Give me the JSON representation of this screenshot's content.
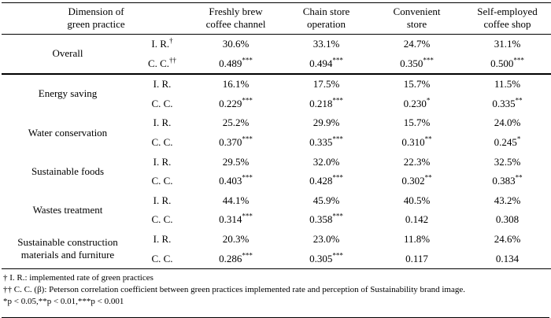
{
  "table": {
    "header": {
      "dimension": "Dimension of\ngreen practice",
      "columns": [
        "Freshly brew\ncoffee channel",
        "Chain store\noperation",
        "Convenient\nstore",
        "Self-employed\ncoffee shop"
      ]
    },
    "row_labels": {
      "ir": "I. R.",
      "cc": "C. C."
    },
    "groups": [
      {
        "dimension": "Overall",
        "ir_sup": "†",
        "cc_sup": "††",
        "ir": [
          {
            "v": "30.6%",
            "s": ""
          },
          {
            "v": "33.1%",
            "s": ""
          },
          {
            "v": "24.7%",
            "s": ""
          },
          {
            "v": "31.1%",
            "s": ""
          }
        ],
        "cc": [
          {
            "v": "0.489",
            "s": "***"
          },
          {
            "v": "0.494",
            "s": "***"
          },
          {
            "v": "0.350",
            "s": "***"
          },
          {
            "v": "0.500",
            "s": "***"
          }
        ]
      },
      {
        "dimension": "Energy saving",
        "ir_sup": "",
        "cc_sup": "",
        "ir": [
          {
            "v": "16.1%",
            "s": ""
          },
          {
            "v": "17.5%",
            "s": ""
          },
          {
            "v": "15.7%",
            "s": ""
          },
          {
            "v": "11.5%",
            "s": ""
          }
        ],
        "cc": [
          {
            "v": "0.229",
            "s": "***"
          },
          {
            "v": "0.218",
            "s": "***"
          },
          {
            "v": "0.230",
            "s": "*"
          },
          {
            "v": "0.335",
            "s": "**"
          }
        ]
      },
      {
        "dimension": "Water conservation",
        "ir_sup": "",
        "cc_sup": "",
        "ir": [
          {
            "v": "25.2%",
            "s": ""
          },
          {
            "v": "29.9%",
            "s": ""
          },
          {
            "v": "15.7%",
            "s": ""
          },
          {
            "v": "24.0%",
            "s": ""
          }
        ],
        "cc": [
          {
            "v": "0.370",
            "s": "***"
          },
          {
            "v": "0.335",
            "s": "***"
          },
          {
            "v": "0.310",
            "s": "**"
          },
          {
            "v": "0.245",
            "s": "*"
          }
        ]
      },
      {
        "dimension": "Sustainable foods",
        "ir_sup": "",
        "cc_sup": "",
        "ir": [
          {
            "v": "29.5%",
            "s": ""
          },
          {
            "v": "32.0%",
            "s": ""
          },
          {
            "v": "22.3%",
            "s": ""
          },
          {
            "v": "32.5%",
            "s": ""
          }
        ],
        "cc": [
          {
            "v": "0.403",
            "s": "***"
          },
          {
            "v": "0.428",
            "s": "***"
          },
          {
            "v": "0.302",
            "s": "**"
          },
          {
            "v": "0.383",
            "s": "**"
          }
        ]
      },
      {
        "dimension": "Wastes treatment",
        "ir_sup": "",
        "cc_sup": "",
        "ir": [
          {
            "v": "44.1%",
            "s": ""
          },
          {
            "v": "45.9%",
            "s": ""
          },
          {
            "v": "40.5%",
            "s": ""
          },
          {
            "v": "43.2%",
            "s": ""
          }
        ],
        "cc": [
          {
            "v": "0.314",
            "s": "***"
          },
          {
            "v": "0.358",
            "s": "***"
          },
          {
            "v": "0.142",
            "s": ""
          },
          {
            "v": "0.308",
            "s": ""
          }
        ]
      },
      {
        "dimension": "Sustainable construction\nmaterials and furniture",
        "ir_sup": "",
        "cc_sup": "",
        "ir": [
          {
            "v": "20.3%",
            "s": ""
          },
          {
            "v": "23.0%",
            "s": ""
          },
          {
            "v": "11.8%",
            "s": ""
          },
          {
            "v": "24.6%",
            "s": ""
          }
        ],
        "cc": [
          {
            "v": "0.286",
            "s": "***"
          },
          {
            "v": "0.305",
            "s": "***"
          },
          {
            "v": "0.117",
            "s": ""
          },
          {
            "v": "0.134",
            "s": ""
          }
        ]
      }
    ],
    "footnotes": [
      "† I. R.: implemented rate of green practices",
      "†† C. C. (β): Peterson correlation coefficient between green practices implemented rate and perception of Sustainability brand image.",
      "*p < 0.05,**p < 0.01,***p < 0.001"
    ]
  }
}
